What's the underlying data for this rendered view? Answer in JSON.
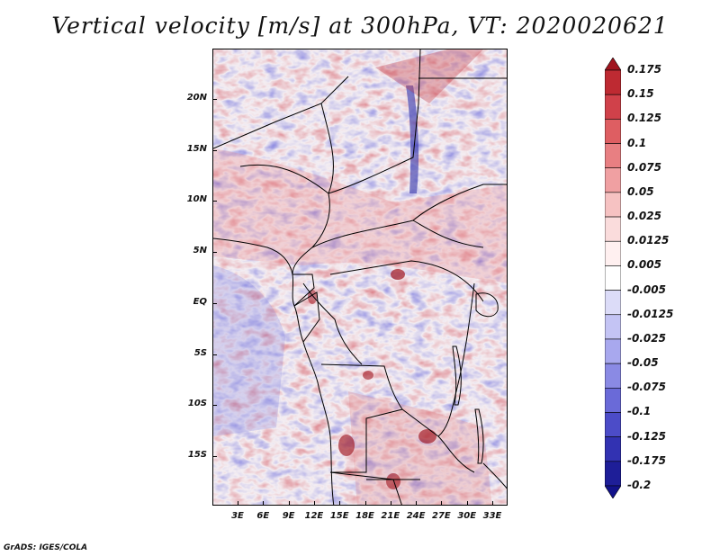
{
  "title": "Vertical velocity [m/s] at 300hPa, VT: 2020020621",
  "credit": "GrADS: IGES/COLA",
  "map": {
    "lat_labels": [
      "20N",
      "15N",
      "10N",
      "5N",
      "EQ",
      "5S",
      "10S",
      "15S"
    ],
    "lat_values": [
      20,
      15,
      10,
      5,
      0,
      -5,
      -10,
      -15
    ],
    "lon_labels": [
      "3E",
      "6E",
      "9E",
      "12E",
      "15E",
      "18E",
      "21E",
      "24E",
      "27E",
      "30E",
      "33E"
    ],
    "lon_values": [
      3,
      6,
      9,
      12,
      15,
      18,
      21,
      24,
      27,
      30,
      33
    ],
    "lat_range": [
      -20,
      25
    ],
    "lon_range": [
      0,
      35
    ]
  },
  "colorbar": {
    "labels": [
      "0.175",
      "0.15",
      "0.125",
      "0.1",
      "0.075",
      "0.05",
      "0.025",
      "0.0125",
      "0.005",
      "-0.005",
      "-0.0125",
      "-0.025",
      "-0.05",
      "-0.075",
      "-0.1",
      "-0.125",
      "-0.175",
      "-0.2"
    ],
    "colors": [
      "#a0141e",
      "#be2a32",
      "#d0414a",
      "#de5e62",
      "#e87f82",
      "#f0a0a2",
      "#f6c2c2",
      "#fadcdc",
      "#fff0f0",
      "#ffffff",
      "#dcdcf8",
      "#c4c4f4",
      "#a8a8ee",
      "#8a8ae4",
      "#6a6ad8",
      "#4c4cc8",
      "#3232b2",
      "#1e1e98",
      "#12128a"
    ]
  }
}
